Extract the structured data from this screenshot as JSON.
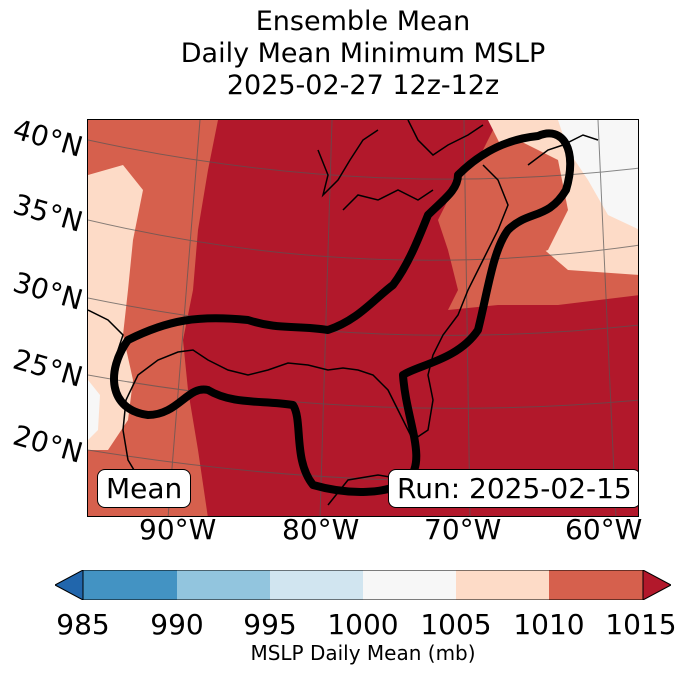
{
  "title": {
    "line1": "Ensemble Mean",
    "line2": "Daily Mean Minimum MSLP",
    "line3": "2025-02-27 12z-12z"
  },
  "map": {
    "lat_labels": [
      "40°N",
      "35°N",
      "30°N",
      "25°N",
      "20°N"
    ],
    "lon_labels": [
      "90°W",
      "80°W",
      "70°W",
      "60°W"
    ],
    "mean_label": "Mean",
    "run_label": "Run: 2025-02-15"
  },
  "colorbar": {
    "label": "MSLP Daily Mean (mb)",
    "ticks": [
      "985",
      "990",
      "995",
      "1000",
      "1005",
      "1010",
      "1015"
    ],
    "colors": [
      "#2166ac",
      "#4393c3",
      "#92c5de",
      "#d1e5f0",
      "#f7f7f7",
      "#fddbc7",
      "#d6604d",
      "#b2182b"
    ]
  }
}
